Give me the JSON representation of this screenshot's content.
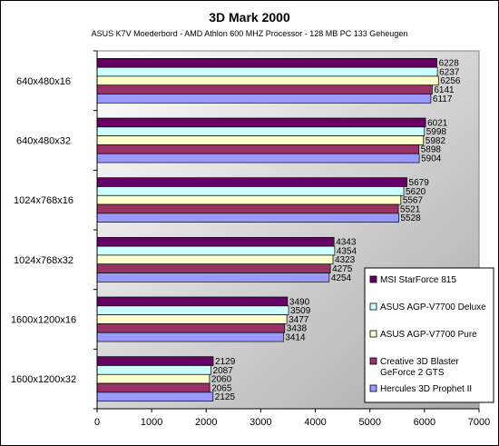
{
  "chart_data": {
    "type": "bar",
    "orientation": "horizontal",
    "title": "3D Mark 2000",
    "subtitle": "ASUS K7V Moederbord - AMD Athlon 600 MHZ Processor - 128 MB PC 133 Geheugen",
    "xlabel": "",
    "ylabel": "",
    "xlim": [
      0,
      7000
    ],
    "xticks": [
      0,
      1000,
      2000,
      3000,
      4000,
      5000,
      6000,
      7000
    ],
    "grid": false,
    "legend_position": "right",
    "categories": [
      "640x480x16",
      "640x480x32",
      "1024x768x16",
      "1024x768x32",
      "1600x1200x16",
      "1600x1200x32"
    ],
    "series": [
      {
        "name": "MSI StarForce 815",
        "color": "#660066",
        "values": [
          6228,
          6021,
          5679,
          4343,
          3490,
          2129
        ]
      },
      {
        "name": "ASUS AGP-V7700 Deluxe",
        "color": "#ccffff",
        "values": [
          6237,
          5998,
          5620,
          4354,
          3509,
          2087
        ]
      },
      {
        "name": "ASUS AGP-V7700 Pure",
        "color": "#ffffcc",
        "values": [
          6256,
          5982,
          5567,
          4323,
          3477,
          2060
        ]
      },
      {
        "name": "Creative 3D Blaster GeForce 2 GTS",
        "color": "#993366",
        "values": [
          6141,
          5898,
          5521,
          4275,
          3438,
          2065
        ]
      },
      {
        "name": "Hercules 3D Prophet II",
        "color": "#9999ff",
        "values": [
          6117,
          5904,
          5528,
          4254,
          3414,
          2125
        ]
      }
    ]
  }
}
